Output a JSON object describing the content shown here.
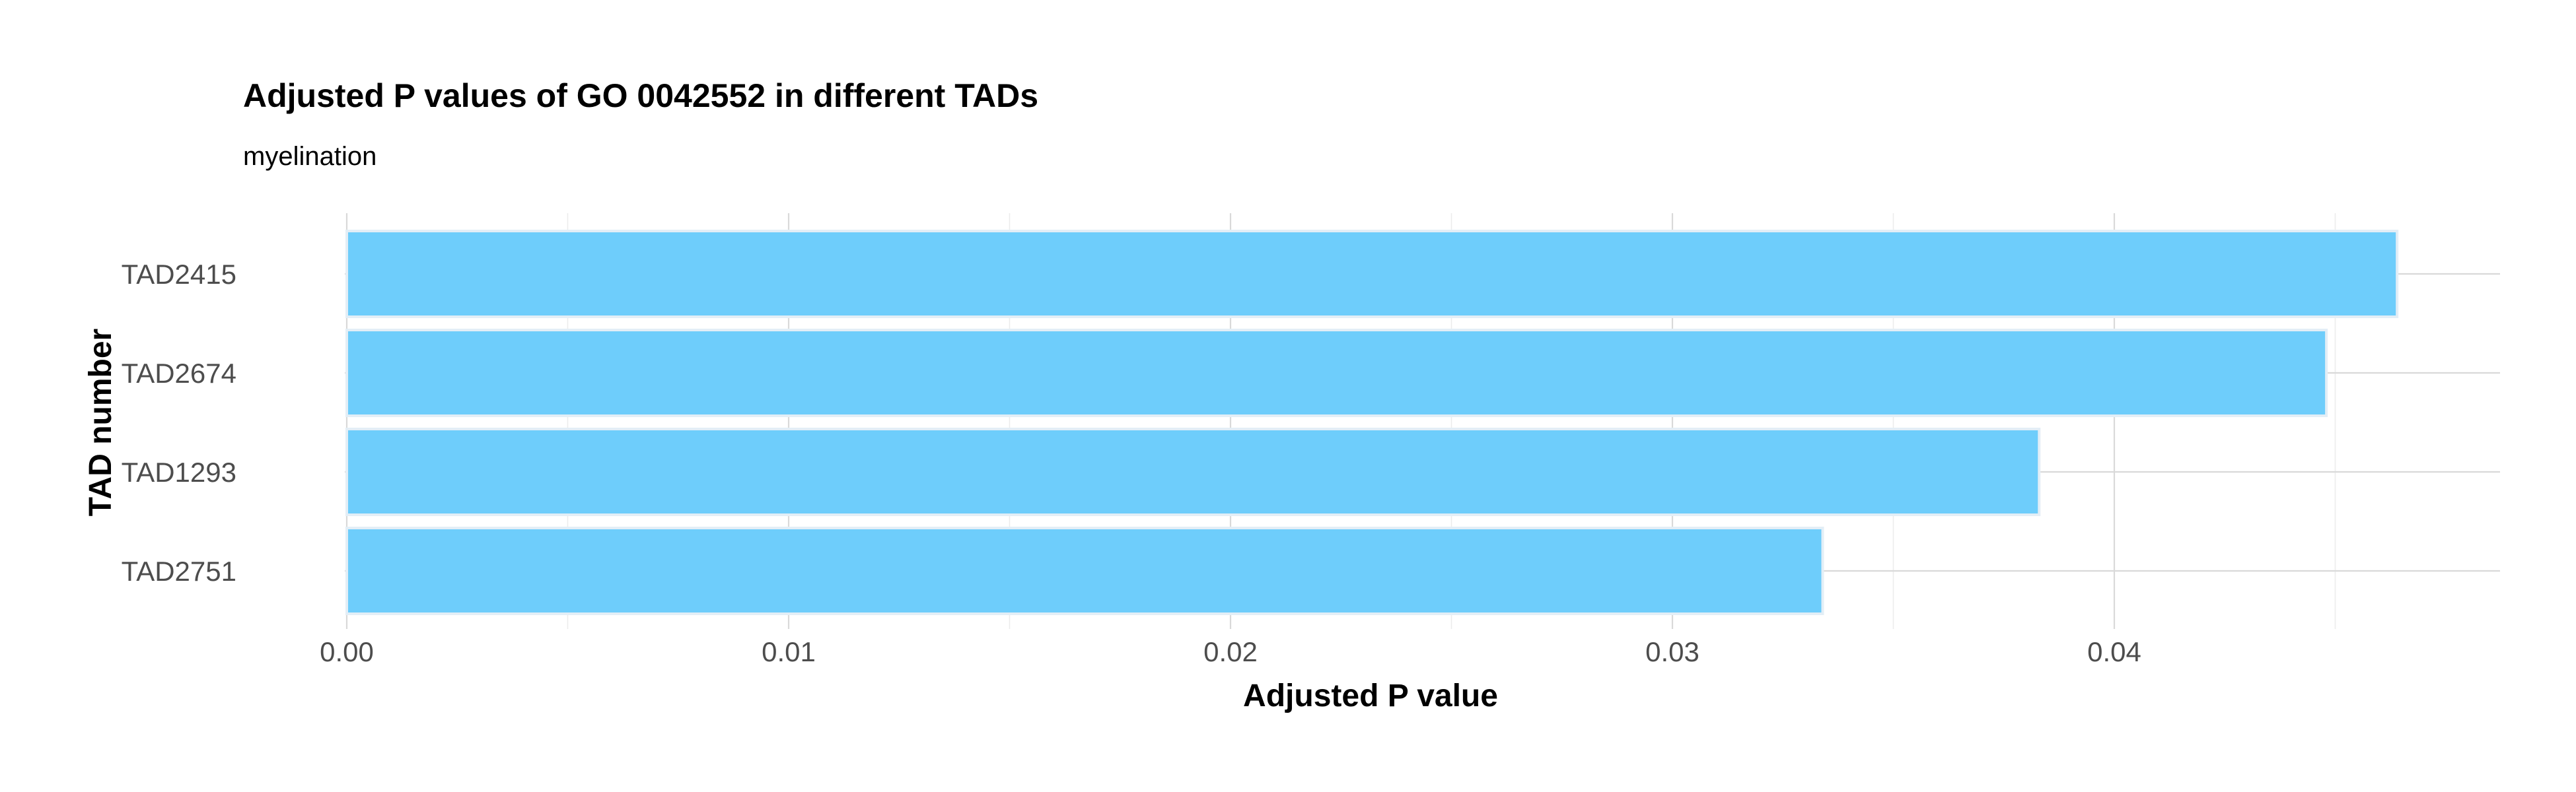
{
  "chart_data": {
    "type": "bar",
    "orientation": "horizontal",
    "title": "Adjusted P values of GO 0042552 in different TADs",
    "subtitle": "myelination",
    "xlabel": "Adjusted P value",
    "ylabel": "TAD number",
    "categories": [
      "TAD2415",
      "TAD2674",
      "TAD1293",
      "TAD2751"
    ],
    "values": [
      0.0464,
      0.0448,
      0.0383,
      0.0334
    ],
    "xlim": [
      0,
      0.0488
    ],
    "xticks": [
      0,
      0.01,
      0.02,
      0.03,
      0.04
    ],
    "xtick_labels": [
      "0.00",
      "0.01",
      "0.02",
      "0.03",
      "0.04"
    ],
    "grid": true,
    "legend": "none",
    "bar_color": "#6ecdfb",
    "bar_outline_color": "#e3eef6"
  }
}
